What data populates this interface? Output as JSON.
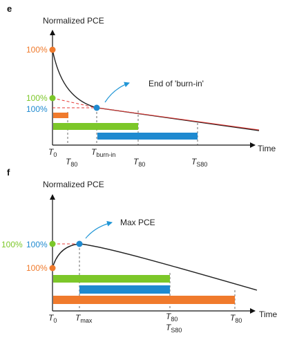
{
  "colors": {
    "orange": "#f07a2c",
    "green": "#7cc729",
    "blue": "#1f8ad0",
    "red": "#e53935",
    "curve": "#222222",
    "arrow_blue": "#2196d6"
  },
  "panel_e": {
    "letter": "e",
    "ylabel": "Normalized PCE",
    "xlabel": "Time",
    "pct_orange": "100%",
    "pct_green": "100%",
    "pct_blue": "100%",
    "annotation": "End of 'burn-in'",
    "ticks": {
      "t0_main": "T",
      "t0_sub": "0",
      "t80a_main": "T",
      "t80a_sub": "80",
      "tburn_main": "T",
      "tburn_sub": "burn-in",
      "t80b_main": "T",
      "t80b_sub": "80",
      "ts80_main": "T",
      "ts80_sub": "S80"
    }
  },
  "panel_f": {
    "letter": "f",
    "ylabel": "Normalized PCE",
    "xlabel": "Time",
    "pct_green": "100%",
    "pct_blue": "100%",
    "pct_orange": "100%",
    "annotation": "Max PCE",
    "ticks": {
      "t0_main": "T",
      "t0_sub": "0",
      "tmax_main": "T",
      "tmax_sub": "max",
      "t80g_main": "T",
      "t80g_sub": "80",
      "ts80_main": "T",
      "ts80_sub": "S80",
      "t80o_main": "T",
      "t80o_sub": "80"
    }
  }
}
